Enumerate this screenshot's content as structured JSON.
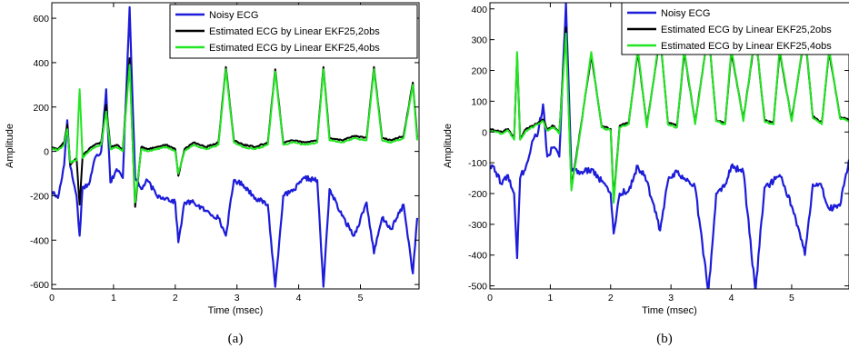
{
  "chart_data": [
    {
      "type": "line",
      "caption": "(a)",
      "xlabel": "Time (msec)",
      "ylabel": "Amplitude",
      "xlim": [
        0,
        5.95
      ],
      "ylim": [
        -620,
        670
      ],
      "xticks": [
        0,
        1,
        2,
        3,
        4,
        5
      ],
      "yticks": [
        -600,
        -400,
        -200,
        0,
        200,
        400,
        600
      ],
      "beats": [
        0.22,
        0.45,
        0.88,
        1.26,
        2.05,
        2.82,
        3.62,
        4.4,
        5.22,
        5.92
      ],
      "legend_position": "top-right",
      "series": [
        {
          "name": "Noisy ECG",
          "color": "#1c1cd9",
          "x": [
            0,
            0.1,
            0.2,
            0.25,
            0.3,
            0.4,
            0.45,
            0.5,
            0.6,
            0.7,
            0.8,
            0.88,
            0.95,
            1.05,
            1.15,
            1.26,
            1.35,
            1.45,
            1.55,
            1.7,
            1.85,
            2.0,
            2.05,
            2.15,
            2.3,
            2.5,
            2.7,
            2.82,
            2.95,
            3.1,
            3.3,
            3.5,
            3.62,
            3.75,
            3.9,
            4.1,
            4.3,
            4.4,
            4.5,
            4.7,
            4.9,
            5.1,
            5.22,
            5.35,
            5.5,
            5.7,
            5.85,
            5.92
          ],
          "y": [
            -180,
            -210,
            -60,
            140,
            -70,
            -200,
            -380,
            -160,
            -150,
            -30,
            0,
            280,
            -140,
            -80,
            -120,
            650,
            -120,
            -170,
            -130,
            -200,
            -210,
            -230,
            -410,
            -230,
            -230,
            -270,
            -300,
            -380,
            -130,
            -150,
            -210,
            -240,
            -610,
            -200,
            -180,
            -120,
            -130,
            -610,
            -170,
            -290,
            -380,
            -230,
            -460,
            -300,
            -350,
            -240,
            -550,
            -300
          ]
        },
        {
          "name": "Estimated ECG by Linear EKF25,2obs",
          "color": "#000000",
          "x": [
            0,
            0.1,
            0.2,
            0.25,
            0.3,
            0.4,
            0.45,
            0.5,
            0.6,
            0.7,
            0.8,
            0.88,
            0.95,
            1.05,
            1.15,
            1.26,
            1.35,
            1.45,
            1.55,
            1.7,
            1.85,
            2.0,
            2.05,
            2.15,
            2.3,
            2.5,
            2.7,
            2.82,
            2.95,
            3.1,
            3.3,
            3.5,
            3.62,
            3.75,
            3.9,
            4.1,
            4.3,
            4.4,
            4.5,
            4.7,
            4.9,
            5.1,
            5.22,
            5.35,
            5.5,
            5.7,
            5.85,
            5.92
          ],
          "y": [
            20,
            10,
            40,
            120,
            -60,
            -30,
            -240,
            -20,
            10,
            30,
            40,
            210,
            20,
            30,
            10,
            420,
            -250,
            20,
            10,
            20,
            30,
            10,
            -110,
            10,
            40,
            20,
            40,
            380,
            50,
            30,
            20,
            40,
            370,
            40,
            50,
            40,
            50,
            380,
            60,
            50,
            70,
            60,
            380,
            60,
            50,
            70,
            310,
            60
          ]
        },
        {
          "name": "Estimated ECG by Linear EKF25,4obs",
          "color": "#22e622",
          "x": [
            0,
            0.1,
            0.2,
            0.25,
            0.3,
            0.4,
            0.45,
            0.5,
            0.6,
            0.7,
            0.8,
            0.88,
            0.95,
            1.05,
            1.15,
            1.26,
            1.35,
            1.45,
            1.55,
            1.7,
            1.85,
            2.0,
            2.05,
            2.15,
            2.3,
            2.5,
            2.7,
            2.82,
            2.95,
            3.1,
            3.3,
            3.5,
            3.62,
            3.75,
            3.9,
            4.1,
            4.3,
            4.4,
            4.5,
            4.7,
            4.9,
            5.1,
            5.22,
            5.35,
            5.5,
            5.7,
            5.85,
            5.92
          ],
          "y": [
            15,
            5,
            30,
            100,
            -50,
            -40,
            280,
            -30,
            0,
            20,
            30,
            180,
            10,
            20,
            0,
            390,
            -230,
            10,
            0,
            10,
            20,
            0,
            -100,
            0,
            30,
            10,
            30,
            370,
            40,
            20,
            10,
            30,
            360,
            30,
            40,
            30,
            40,
            370,
            50,
            40,
            60,
            50,
            370,
            50,
            40,
            60,
            300,
            50
          ]
        }
      ]
    },
    {
      "type": "line",
      "caption": "(b)",
      "xlabel": "Time (msec)",
      "ylabel": "Amplitude",
      "xlim": [
        0,
        5.95
      ],
      "ylim": [
        -510,
        420
      ],
      "xticks": [
        0,
        1,
        2,
        3,
        4,
        5
      ],
      "yticks": [
        -500,
        -400,
        -300,
        -200,
        -100,
        0,
        100,
        200,
        300,
        400
      ],
      "beats": [
        0.45,
        0.88,
        1.26,
        1.68,
        2.05,
        2.45,
        2.82,
        3.22,
        3.62,
        4.0,
        4.4,
        4.8,
        5.22,
        5.62
      ],
      "legend_position": "top-right",
      "series": [
        {
          "name": "Noisy ECG",
          "color": "#1c1cd9",
          "x": [
            0,
            0.1,
            0.2,
            0.3,
            0.4,
            0.45,
            0.5,
            0.6,
            0.7,
            0.8,
            0.88,
            0.95,
            1.05,
            1.15,
            1.26,
            1.35,
            1.5,
            1.68,
            1.85,
            2.0,
            2.05,
            2.15,
            2.3,
            2.45,
            2.6,
            2.82,
            2.95,
            3.1,
            3.22,
            3.4,
            3.62,
            3.75,
            3.9,
            4.0,
            4.2,
            4.4,
            4.55,
            4.7,
            4.8,
            5.0,
            5.22,
            5.35,
            5.5,
            5.62,
            5.8,
            5.95
          ],
          "y": [
            -110,
            -130,
            -170,
            -140,
            -200,
            -410,
            -150,
            -110,
            -30,
            0,
            90,
            -80,
            -50,
            -80,
            420,
            -120,
            -130,
            -120,
            -160,
            -200,
            -330,
            -200,
            -190,
            -110,
            -160,
            -320,
            -160,
            -130,
            -150,
            -180,
            -520,
            -200,
            -170,
            -110,
            -130,
            -520,
            -180,
            -160,
            -140,
            -240,
            -400,
            -170,
            -180,
            -250,
            -240,
            -90
          ]
        },
        {
          "name": "Estimated ECG by Linear EKF25,2obs",
          "color": "#000000",
          "x": [
            0,
            0.1,
            0.2,
            0.3,
            0.4,
            0.45,
            0.5,
            0.6,
            0.7,
            0.8,
            0.88,
            0.95,
            1.05,
            1.15,
            1.26,
            1.35,
            1.5,
            1.68,
            1.85,
            2.0,
            2.05,
            2.15,
            2.3,
            2.45,
            2.6,
            2.82,
            2.95,
            3.1,
            3.22,
            3.4,
            3.62,
            3.75,
            3.9,
            4.0,
            4.2,
            4.4,
            4.55,
            4.7,
            4.8,
            5.0,
            5.22,
            5.35,
            5.5,
            5.62,
            5.8,
            5.95
          ],
          "y": [
            10,
            5,
            0,
            10,
            -20,
            250,
            -20,
            10,
            20,
            30,
            40,
            10,
            20,
            0,
            340,
            -180,
            10,
            250,
            20,
            10,
            -220,
            20,
            30,
            260,
            20,
            310,
            30,
            20,
            260,
            30,
            330,
            40,
            30,
            260,
            40,
            320,
            40,
            30,
            260,
            40,
            320,
            50,
            30,
            260,
            50,
            40
          ]
        },
        {
          "name": "Estimated ECG by Linear EKF25,4obs",
          "color": "#22e622",
          "x": [
            0,
            0.1,
            0.2,
            0.3,
            0.4,
            0.45,
            0.5,
            0.6,
            0.7,
            0.8,
            0.88,
            0.95,
            1.05,
            1.15,
            1.26,
            1.35,
            1.5,
            1.68,
            1.85,
            2.0,
            2.05,
            2.15,
            2.3,
            2.45,
            2.6,
            2.82,
            2.95,
            3.1,
            3.22,
            3.4,
            3.62,
            3.75,
            3.9,
            4.0,
            4.2,
            4.4,
            4.55,
            4.7,
            4.8,
            5.0,
            5.22,
            5.35,
            5.5,
            5.62,
            5.8,
            5.95
          ],
          "y": [
            5,
            0,
            -5,
            5,
            -25,
            260,
            -25,
            5,
            15,
            25,
            35,
            5,
            15,
            -5,
            320,
            -190,
            5,
            260,
            15,
            5,
            -230,
            15,
            25,
            270,
            15,
            320,
            25,
            15,
            270,
            25,
            330,
            35,
            25,
            270,
            35,
            330,
            35,
            25,
            270,
            35,
            330,
            45,
            25,
            270,
            45,
            35
          ]
        }
      ]
    }
  ]
}
